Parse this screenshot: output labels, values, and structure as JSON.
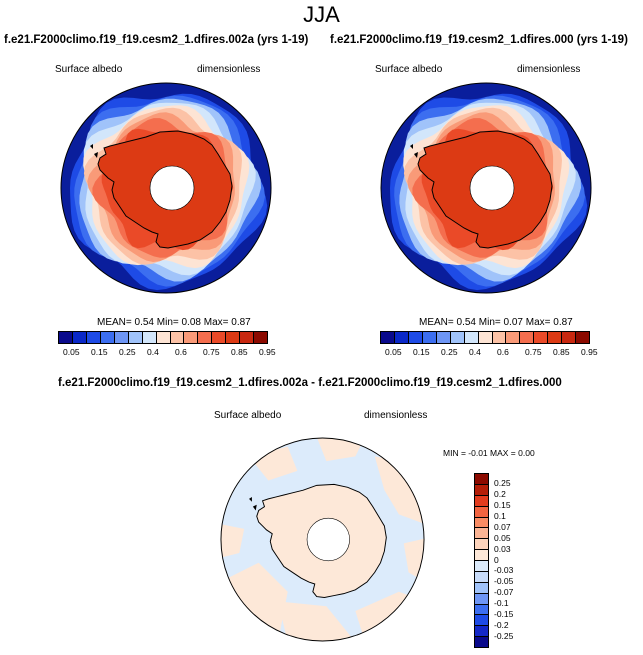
{
  "page_title": "JJA",
  "colors": {
    "albedo": [
      "#0a0a8c",
      "#0a28c8",
      "#1e4be6",
      "#3c6ef0",
      "#6e96f5",
      "#a0c3fa",
      "#d2e6fb",
      "#fde4d4",
      "#fcc2a6",
      "#f99a78",
      "#f46e4e",
      "#ea4a28",
      "#dc3a14",
      "#c82810",
      "#8c0a00"
    ],
    "diff": [
      "#0a0a8c",
      "#1428c8",
      "#1e4be6",
      "#3c6ef0",
      "#6e96f5",
      "#a0c3fa",
      "#c8dcfa",
      "#dcebfb",
      "#fde8d8",
      "#fdd4bc",
      "#fbb494",
      "#f98c64",
      "#f26440",
      "#e23c1e",
      "#b41e08",
      "#8c0a00"
    ],
    "ocean_dark": "#0a1e9c",
    "ice_main": "#e63c10",
    "diff_bg": "#dcebfb",
    "diff_patch": "#fde8d8"
  },
  "panels": [
    {
      "title": "f.e21.F2000climo.f19_f19.cesm2_1.dfires.002a (yrs 1-19)",
      "left_label": "Surface albedo",
      "right_label": "dimensionless",
      "stats": {
        "mean_label": "MEAN=",
        "mean": "0.54",
        "min_label": "Min=",
        "min": "0.08",
        "max_label": "Max=",
        "max": "0.87"
      },
      "colorbar_labels": [
        "0.05",
        "0.15",
        "0.25",
        "0.4",
        "0.6",
        "0.75",
        "0.85",
        "0.95"
      ]
    },
    {
      "title": "f.e21.F2000climo.f19_f19.cesm2_1.dfires.000 (yrs 1-19)",
      "left_label": "Surface albedo",
      "right_label": "dimensionless",
      "stats": {
        "mean_label": "MEAN=",
        "mean": "0.54",
        "min_label": "Min=",
        "min": "0.07",
        "max_label": "Max=",
        "max": "0.87"
      },
      "colorbar_labels": [
        "0.05",
        "0.15",
        "0.25",
        "0.4",
        "0.6",
        "0.75",
        "0.85",
        "0.95"
      ]
    }
  ],
  "diff_panel": {
    "title": "f.e21.F2000climo.f19_f19.cesm2_1.dfires.002a - f.e21.F2000climo.f19_f19.cesm2_1.dfires.000",
    "left_label": "Surface albedo",
    "right_label": "dimensionless",
    "stats": {
      "min_label": "MIN =",
      "min": "-0.01",
      "max_label": "MAX =",
      "max": "0.00"
    },
    "colorbar_labels": [
      "0.25",
      "0.2",
      "0.15",
      "0.1",
      "0.07",
      "0.05",
      "0.03",
      "0",
      "-0.03",
      "-0.05",
      "-0.07",
      "-0.1",
      "-0.15",
      "-0.2",
      "-0.25"
    ]
  }
}
